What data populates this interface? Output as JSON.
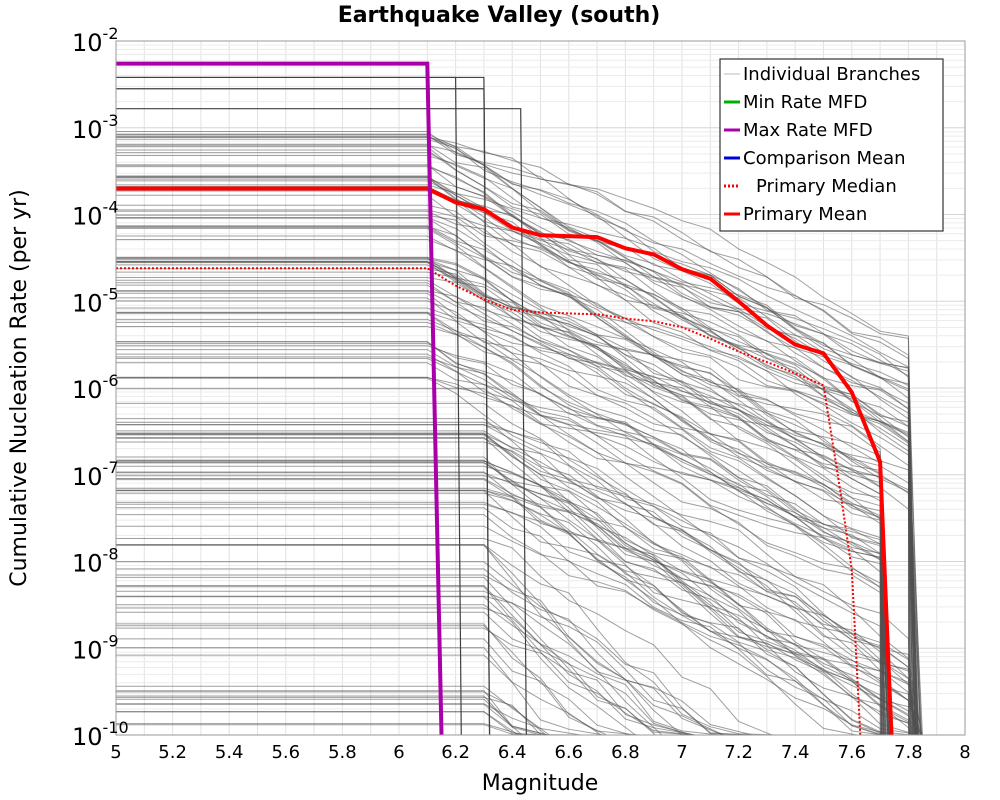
{
  "chart_data": {
    "type": "line",
    "title": "Earthquake Valley (south)",
    "xlabel": "Magnitude",
    "ylabel": "Cumulative Nucleation Rate (per yr)",
    "xlim": [
      5,
      8
    ],
    "ylim_log10": [
      -10,
      -2
    ],
    "y_scale": "log",
    "grid": true,
    "x_ticks": [
      5,
      5.2,
      5.4,
      5.6,
      5.8,
      6,
      6.2,
      6.4,
      6.6,
      6.8,
      7,
      7.2,
      7.4,
      7.6,
      7.8,
      8
    ],
    "x_tick_labels": [
      "5",
      "5.2",
      "5.4",
      "5.6",
      "5.8",
      "6",
      "6.2",
      "6.4",
      "6.6",
      "6.8",
      "7",
      "7.2",
      "7.4",
      "7.6",
      "7.8",
      "8"
    ],
    "y_ticks": [
      {
        "base": "10",
        "exp": "-2",
        "value": -2
      },
      {
        "base": "10",
        "exp": "-3",
        "value": -3
      },
      {
        "base": "10",
        "exp": "-4",
        "value": -4
      },
      {
        "base": "10",
        "exp": "-5",
        "value": -5
      },
      {
        "base": "10",
        "exp": "-6",
        "value": -6
      },
      {
        "base": "10",
        "exp": "-7",
        "value": -7
      },
      {
        "base": "10",
        "exp": "-8",
        "value": -8
      },
      {
        "base": "10",
        "exp": "-9",
        "value": -9
      },
      {
        "base": "10",
        "exp": "-10",
        "value": -10
      }
    ],
    "legend_position": "top-right",
    "legend": [
      {
        "label": "Individual Branches",
        "color": "#bbbbbb",
        "style": "solid"
      },
      {
        "label": "Min Rate MFD",
        "color": "#00b000",
        "style": "solid"
      },
      {
        "label": "Max Rate MFD",
        "color": "#aa00aa",
        "style": "solid"
      },
      {
        "label": "Comparison Mean",
        "color": "#0000dd",
        "style": "solid"
      },
      {
        "label": "Primary Median",
        "color": "#ff0000",
        "style": "dotted"
      },
      {
        "label": "Primary Mean",
        "color": "#ff0000",
        "style": "solid"
      }
    ],
    "series": [
      {
        "name": "Primary Mean",
        "color": "#ff0000",
        "style": "solid",
        "x": [
          5.0,
          6.1,
          6.2,
          6.3,
          6.4,
          6.5,
          6.7,
          6.8,
          6.9,
          7.0,
          7.1,
          7.2,
          7.3,
          7.4,
          7.5,
          7.6,
          7.7,
          7.74
        ],
        "log10_y": [
          -3.7,
          -3.7,
          -3.86,
          -3.94,
          -4.15,
          -4.24,
          -4.26,
          -4.39,
          -4.46,
          -4.63,
          -4.74,
          -5.0,
          -5.28,
          -5.5,
          -5.6,
          -6.05,
          -6.85,
          -10.0
        ]
      },
      {
        "name": "Primary Median",
        "color": "#ff0000",
        "style": "dotted",
        "x": [
          5.0,
          6.1,
          6.2,
          6.3,
          6.4,
          6.5,
          6.7,
          6.8,
          6.9,
          7.0,
          7.1,
          7.2,
          7.3,
          7.4,
          7.5,
          7.56,
          7.6,
          7.63
        ],
        "log10_y": [
          -4.62,
          -4.62,
          -4.82,
          -4.98,
          -5.1,
          -5.13,
          -5.15,
          -5.2,
          -5.23,
          -5.3,
          -5.43,
          -5.58,
          -5.7,
          -5.83,
          -5.97,
          -7.2,
          -8.1,
          -10.0
        ]
      },
      {
        "name": "Max Rate MFD",
        "color": "#aa00aa",
        "style": "solid",
        "x": [
          5.0,
          6.1,
          6.15
        ],
        "log10_y": [
          -2.26,
          -2.26,
          -10.0
        ]
      }
    ],
    "branch_groups": [
      {
        "name": "Individual Branches",
        "band_log10": [
          -4.3,
          -3.0
        ],
        "count": 40,
        "flat_to": 6.1,
        "end_x": 7.75,
        "slope_scale": 1.0
      },
      {
        "name": "Individual Branches",
        "band_log10": [
          -5.9,
          -4.4
        ],
        "count": 40,
        "flat_to": 6.1,
        "end_x": 7.72,
        "slope_scale": 1.0
      },
      {
        "name": "Individual Branches",
        "band_log10": [
          -7.6,
          -6.0
        ],
        "count": 36,
        "flat_to": 6.3,
        "end_x": 7.75,
        "slope_scale": 1.2
      },
      {
        "name": "Individual Branches",
        "band_log10": [
          -9.9,
          -7.7
        ],
        "count": 34,
        "flat_to": 6.3,
        "end_x": 7.85,
        "slope_scale": 1.6
      }
    ]
  }
}
